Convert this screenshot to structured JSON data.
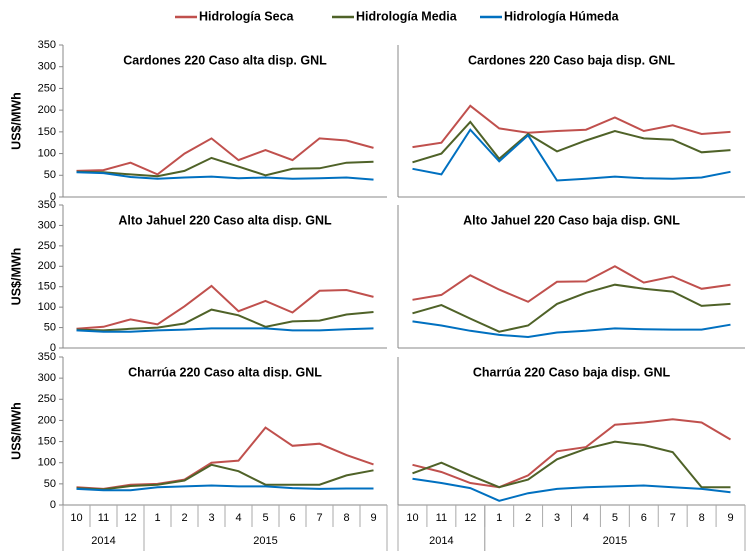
{
  "chart_data": [
    {
      "type": "line",
      "title": "Cardones 220  Caso alta disp. GNL",
      "ylabel": "US$/MWh",
      "ylim": [
        0,
        350
      ],
      "yticks": [
        0,
        50,
        100,
        150,
        200,
        250,
        300,
        350
      ],
      "series": [
        {
          "name": "Hidrología Seca",
          "color": "#c0504d",
          "values": [
            60,
            62,
            79,
            52,
            100,
            135,
            85,
            108,
            85,
            135,
            130,
            113
          ]
        },
        {
          "name": "Hidrología Media",
          "color": "#4f6228",
          "values": [
            58,
            57,
            52,
            48,
            60,
            90,
            70,
            50,
            65,
            66,
            79,
            81
          ]
        },
        {
          "name": "Hidrología Húmeda",
          "color": "#0070c0",
          "values": [
            57,
            55,
            46,
            42,
            45,
            47,
            43,
            45,
            42,
            43,
            45,
            40
          ]
        }
      ]
    },
    {
      "type": "line",
      "title": "Cardones 220 Caso baja disp. GNL",
      "ylim": [
        0,
        350
      ],
      "series": [
        {
          "color": "#c0504d",
          "values": [
            115,
            125,
            210,
            158,
            148,
            152,
            155,
            183,
            152,
            165,
            145,
            150
          ]
        },
        {
          "color": "#4f6228",
          "values": [
            80,
            100,
            173,
            88,
            145,
            105,
            130,
            152,
            135,
            132,
            103,
            108
          ]
        },
        {
          "color": "#0070c0",
          "values": [
            65,
            52,
            155,
            82,
            142,
            38,
            42,
            47,
            43,
            42,
            45,
            58
          ]
        }
      ]
    },
    {
      "type": "line",
      "title": "Alto Jahuel 220 Caso alta disp. GNL",
      "ylabel": "US$/MWh",
      "ylim": [
        0,
        350
      ],
      "yticks": [
        0,
        50,
        100,
        150,
        200,
        250,
        300,
        350
      ],
      "series": [
        {
          "color": "#c0504d",
          "values": [
            47,
            52,
            70,
            58,
            102,
            152,
            90,
            115,
            87,
            140,
            142,
            125
          ]
        },
        {
          "color": "#4f6228",
          "values": [
            45,
            43,
            47,
            50,
            60,
            94,
            80,
            52,
            65,
            67,
            82,
            88
          ]
        },
        {
          "color": "#0070c0",
          "values": [
            43,
            40,
            40,
            43,
            45,
            48,
            48,
            48,
            43,
            43,
            46,
            48
          ]
        }
      ]
    },
    {
      "type": "line",
      "title": "Alto Jahuel 220  Caso baja disp. GNL",
      "ylim": [
        0,
        350
      ],
      "series": [
        {
          "color": "#c0504d",
          "values": [
            118,
            130,
            178,
            143,
            113,
            162,
            163,
            200,
            160,
            175,
            145,
            155
          ]
        },
        {
          "color": "#4f6228",
          "values": [
            85,
            105,
            72,
            40,
            55,
            108,
            135,
            155,
            145,
            138,
            103,
            108
          ]
        },
        {
          "color": "#0070c0",
          "values": [
            65,
            55,
            42,
            32,
            27,
            38,
            42,
            48,
            46,
            45,
            45,
            57
          ]
        }
      ]
    },
    {
      "type": "line",
      "title": "Charrúa 220 Caso alta disp. GNL",
      "ylabel": "US$/MWh",
      "ylim": [
        0,
        350
      ],
      "yticks": [
        0,
        50,
        100,
        150,
        200,
        250,
        300,
        350
      ],
      "categories": [
        "10",
        "11",
        "12",
        "1",
        "2",
        "3",
        "4",
        "5",
        "6",
        "7",
        "8",
        "9"
      ],
      "years": [
        "2014",
        "2014",
        "2014",
        "2015",
        "2015",
        "2015",
        "2015",
        "2015",
        "2015",
        "2015",
        "2015",
        "2015"
      ],
      "series": [
        {
          "color": "#c0504d",
          "values": [
            42,
            38,
            48,
            50,
            60,
            100,
            105,
            183,
            140,
            145,
            118,
            96
          ]
        },
        {
          "color": "#4f6228",
          "values": [
            40,
            37,
            45,
            48,
            58,
            95,
            80,
            48,
            48,
            48,
            70,
            82
          ]
        },
        {
          "color": "#0070c0",
          "values": [
            38,
            35,
            35,
            42,
            44,
            46,
            44,
            44,
            40,
            38,
            39,
            39
          ]
        }
      ]
    },
    {
      "type": "line",
      "title": "Charrúa 220 Caso baja disp. GNL",
      "ylim": [
        0,
        350
      ],
      "categories": [
        "10",
        "11",
        "12",
        "1",
        "2",
        "3",
        "4",
        "5",
        "6",
        "7",
        "8",
        "9"
      ],
      "years": [
        "2014",
        "2014",
        "2014",
        "2015",
        "2015",
        "2015",
        "2015",
        "2015",
        "2015",
        "2015",
        "2015",
        "2015"
      ],
      "series": [
        {
          "color": "#c0504d",
          "values": [
            95,
            78,
            52,
            42,
            70,
            127,
            137,
            190,
            195,
            203,
            195,
            155
          ]
        },
        {
          "color": "#4f6228",
          "values": [
            75,
            100,
            70,
            42,
            60,
            108,
            133,
            150,
            142,
            125,
            42,
            42
          ]
        },
        {
          "color": "#0070c0",
          "values": [
            62,
            52,
            40,
            10,
            28,
            38,
            42,
            44,
            46,
            42,
            38,
            30
          ]
        }
      ]
    }
  ]
}
